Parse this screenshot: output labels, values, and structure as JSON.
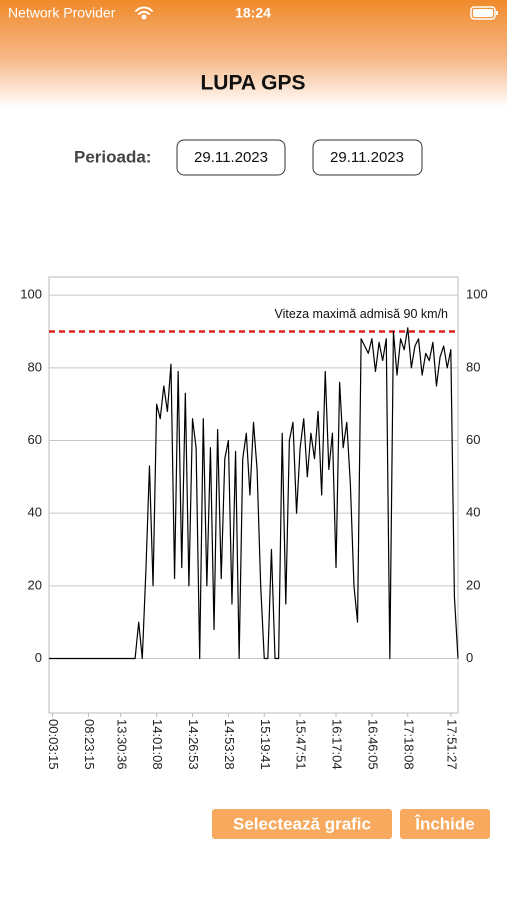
{
  "status_bar": {
    "carrier": "Network Provider",
    "time": "18:24"
  },
  "header": {
    "title": "LUPA GPS"
  },
  "period": {
    "label": "Perioada:",
    "from": "29.11.2023",
    "to": "29.11.2023"
  },
  "chart_data": {
    "type": "line",
    "series": [
      {
        "color": "#000000",
        "values": [
          0,
          0,
          0,
          0,
          0,
          0,
          0,
          0,
          0,
          0,
          0,
          0,
          0,
          0,
          0,
          0,
          0,
          0,
          0,
          0,
          0,
          0,
          0,
          0,
          0,
          10,
          0,
          24,
          53,
          20,
          70,
          66,
          75,
          68,
          81,
          22,
          79,
          25,
          73,
          20,
          66,
          58,
          0,
          66,
          20,
          58,
          8,
          63,
          22,
          55,
          60,
          15,
          57,
          0,
          55,
          62,
          45,
          65,
          52,
          20,
          0,
          0,
          30,
          0,
          0,
          62,
          15,
          60,
          65,
          40,
          58,
          66,
          50,
          62,
          55,
          68,
          45,
          79,
          52,
          62,
          25,
          76,
          58,
          65,
          48,
          20,
          10,
          88,
          86,
          84,
          88,
          79,
          87,
          82,
          88,
          0,
          90,
          78,
          88,
          85,
          91,
          80,
          86,
          88,
          78,
          84,
          82,
          87,
          75,
          83,
          86,
          80,
          85,
          17,
          0
        ]
      }
    ],
    "xlim": [
      0,
      114
    ],
    "xticks": [
      {
        "value": 1,
        "label": "00:03:15"
      },
      {
        "value": 11,
        "label": "08:23:15"
      },
      {
        "value": 20,
        "label": "13:30:36"
      },
      {
        "value": 30,
        "label": "14:01:08"
      },
      {
        "value": 40,
        "label": "14:26:53"
      },
      {
        "value": 50,
        "label": "14:53:28"
      },
      {
        "value": 60,
        "label": "15:19:41"
      },
      {
        "value": 70,
        "label": "15:47:51"
      },
      {
        "value": 80,
        "label": "16:17:04"
      },
      {
        "value": 90,
        "label": "16:46:05"
      },
      {
        "value": 100,
        "label": "17:18:08"
      },
      {
        "value": 112,
        "label": "17:51:27"
      }
    ],
    "ylim": [
      -15,
      105
    ],
    "yticks": [
      0,
      20,
      40,
      60,
      80,
      100
    ],
    "grid": true,
    "limit": {
      "value": 90,
      "label": "Viteza maximă admisă 90 km/h",
      "color": "#e02020"
    }
  },
  "buttons": {
    "select_chart": "Selectează grafic",
    "close": "Închide"
  }
}
